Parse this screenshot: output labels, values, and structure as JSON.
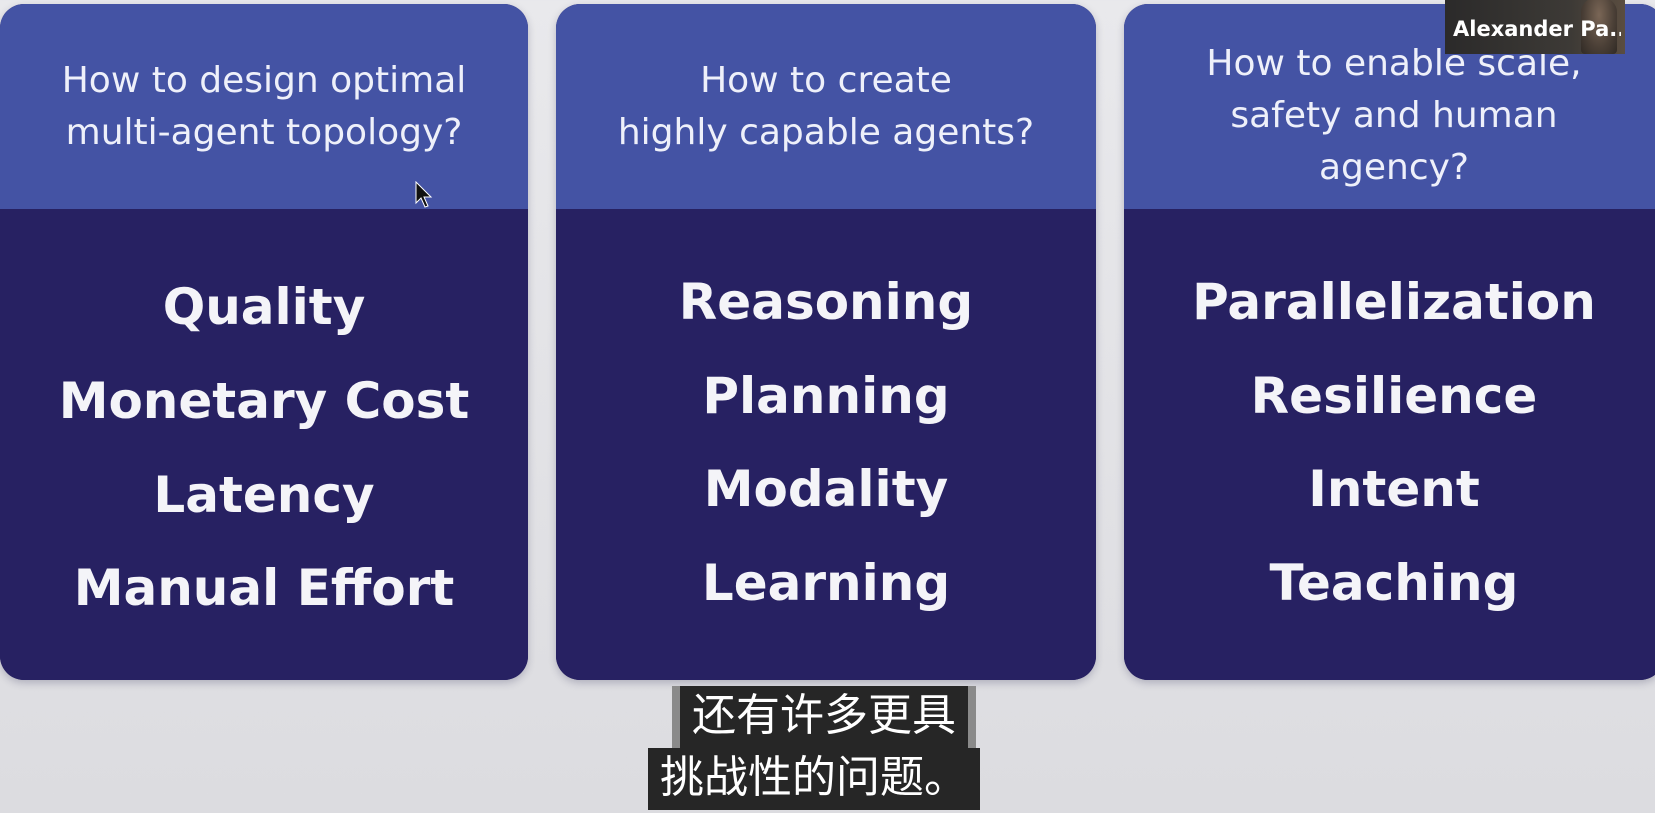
{
  "cards": [
    {
      "question": "How to design optimal\nmulti-agent topology?",
      "items": [
        "Quality",
        "Monetary Cost",
        "Latency",
        "Manual Effort"
      ]
    },
    {
      "question": "How to create\nhighly capable agents?",
      "items": [
        "Reasoning",
        "Planning",
        "Modality",
        "Learning"
      ]
    },
    {
      "question": "How to enable scale,\nsafety and human\nagency?",
      "items": [
        "Parallelization",
        "Resilience",
        "Intent",
        "Teaching"
      ]
    }
  ],
  "video_overlay": {
    "participant_name": "Alexander Pa..."
  },
  "subtitles": {
    "line1": "还有许多更具",
    "line2": "挑战性的问题。"
  },
  "colors": {
    "card_header": "#4453a4",
    "card_body": "#272162",
    "background": "#e4e4e8"
  }
}
